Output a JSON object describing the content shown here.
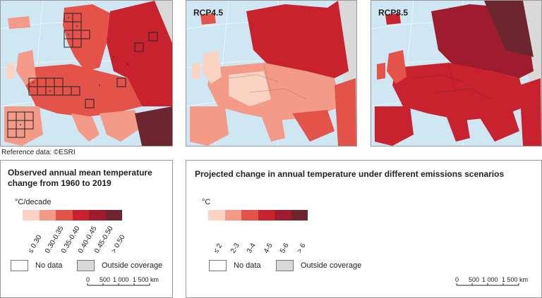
{
  "maps": {
    "observed": {
      "label": ""
    },
    "rcp45": {
      "label": "RCP4.5"
    },
    "rcp85": {
      "label": "RCP8.5"
    }
  },
  "reference": "Reference data: ©ESRI",
  "legend_observed": {
    "title_line1": "Observed annual mean temperature",
    "title_line2": "change from 1960 to 2019",
    "unit": "°C/decade",
    "classes": [
      "≤ 0.30",
      "0.30-0.35",
      "0.35-0.40",
      "0.40-0.45",
      "0.45-0.50",
      "> 0.50"
    ],
    "colors": [
      "#fbd3c3",
      "#f39a88",
      "#e4534a",
      "#c8222f",
      "#9e1c2d",
      "#6d2630"
    ],
    "no_data": "No data",
    "outside": "Outside coverage",
    "scale_labels": [
      "0",
      "500",
      "1 000",
      "1 500 km"
    ]
  },
  "legend_projected": {
    "title": "Projected change in annual temperature under different emissions scenarios",
    "unit": "°C",
    "classes": [
      "≤ 2",
      "2-3",
      "3-4",
      "4-5",
      "5-6",
      "> 6"
    ],
    "colors": [
      "#fbd3c3",
      "#f39a88",
      "#e4534a",
      "#c8222f",
      "#9e1c2d",
      "#6d2630"
    ],
    "no_data": "No data",
    "outside": "Outside coverage",
    "scale_labels": [
      "0",
      "500",
      "1 000",
      "1 500 km"
    ]
  },
  "colors": {
    "sea": "#cfe7f3",
    "outside": "#d9d9d9",
    "border": "#9a9a9a"
  }
}
